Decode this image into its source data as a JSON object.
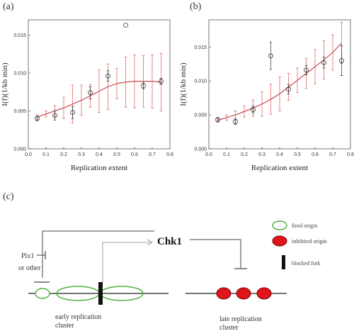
{
  "panels": {
    "a": "(a)",
    "b": "(b)",
    "c": "(c)"
  },
  "chart_data": [
    {
      "type": "scatter",
      "panel": "(a)",
      "xlabel": "Replication extent",
      "ylabel": "I(f)(1/kb min)",
      "xlim": [
        0,
        0.8
      ],
      "ylim": [
        0,
        0.017
      ],
      "xticks": [
        "0.0",
        "0.1",
        "0.2",
        "0.3",
        "0.4",
        "0.5",
        "0.6",
        "0.7",
        "0.8"
      ],
      "yticks": [
        "0.000",
        "0.005",
        "0.010",
        "0.015"
      ],
      "points": [
        {
          "x": 0.05,
          "y": 0.004,
          "err": 0.0003
        },
        {
          "x": 0.15,
          "y": 0.0044,
          "err": 0.0006
        },
        {
          "x": 0.25,
          "y": 0.0048,
          "err": 0.0008
        },
        {
          "x": 0.35,
          "y": 0.0074,
          "err": 0.0008
        },
        {
          "x": 0.45,
          "y": 0.0096,
          "err": 0.0007
        },
        {
          "x": 0.55,
          "y": 0.0163,
          "err": 0
        },
        {
          "x": 0.65,
          "y": 0.0083,
          "err": 0.0004
        },
        {
          "x": 0.75,
          "y": 0.0089,
          "err": 0.0004
        }
      ],
      "fit": {
        "x": [
          0.05,
          0.1,
          0.15,
          0.2,
          0.25,
          0.3,
          0.35,
          0.4,
          0.45,
          0.5,
          0.55,
          0.6,
          0.65,
          0.7,
          0.75
        ],
        "y": [
          0.0042,
          0.0046,
          0.005,
          0.0054,
          0.0059,
          0.0064,
          0.007,
          0.0076,
          0.0082,
          0.0086,
          0.0088,
          0.0089,
          0.0089,
          0.0089,
          0.0088
        ],
        "band": [
          0.0003,
          0.0004,
          0.0007,
          0.0014,
          0.0025,
          0.002,
          0.0015,
          0.0028,
          0.003,
          0.002,
          0.0033,
          0.0035,
          0.0034,
          0.0035,
          0.0038
        ]
      }
    },
    {
      "type": "scatter",
      "panel": "(b)",
      "xlabel": "Replication extent",
      "ylabel": "I(f)(1/kb min)",
      "xlim": [
        0,
        0.8
      ],
      "ylim": [
        0,
        0.019
      ],
      "xticks": [
        "0.0",
        "0.1",
        "0.2",
        "0.3",
        "0.4",
        "0.5",
        "0.6",
        "0.7",
        "0.8"
      ],
      "yticks": [
        "0.000",
        "0.005",
        "0.010",
        "0.015"
      ],
      "points": [
        {
          "x": 0.05,
          "y": 0.0043,
          "err": 0.0003
        },
        {
          "x": 0.15,
          "y": 0.004,
          "err": 0.0004
        },
        {
          "x": 0.25,
          "y": 0.0058,
          "err": 0.0005
        },
        {
          "x": 0.35,
          "y": 0.0137,
          "err": 0.002
        },
        {
          "x": 0.45,
          "y": 0.0088,
          "err": 0.0007
        },
        {
          "x": 0.55,
          "y": 0.0116,
          "err": 0.0007
        },
        {
          "x": 0.65,
          "y": 0.0127,
          "err": 0.0008
        },
        {
          "x": 0.75,
          "y": 0.013,
          "err": 0.0022
        }
      ],
      "fit": {
        "x": [
          0.05,
          0.1,
          0.15,
          0.2,
          0.25,
          0.3,
          0.35,
          0.4,
          0.45,
          0.5,
          0.55,
          0.6,
          0.65,
          0.7,
          0.75
        ],
        "y": [
          0.0042,
          0.0046,
          0.005,
          0.0055,
          0.006,
          0.0066,
          0.0073,
          0.0081,
          0.0091,
          0.0101,
          0.0111,
          0.0121,
          0.0131,
          0.0142,
          0.0156
        ],
        "band": [
          0.0003,
          0.0004,
          0.0006,
          0.0008,
          0.0012,
          0.0018,
          0.0022,
          0.0025,
          0.002,
          0.0018,
          0.0022,
          0.0025,
          0.0028,
          0.0026,
          0.003
        ]
      }
    }
  ],
  "diagram": {
    "chk1": "Chk1",
    "plx1_line1": "Plx1",
    "plx1_line2": "or other",
    "legend": {
      "fired": "fired origin",
      "inhibited": "inhibited origin",
      "blocked": "blocked fork"
    },
    "early_line1": "early replication",
    "early_line2": "cluster",
    "late_line1": "late replication",
    "late_line2": "cluster",
    "colors": {
      "fired": "#4caf3a",
      "inhibited": "#e0141b",
      "curve": "#c83a3a",
      "errorbar": "#e56a6a"
    }
  }
}
